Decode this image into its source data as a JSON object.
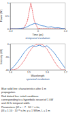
{
  "chart_data": [
    {
      "type": "line",
      "title": "temporal evolution",
      "x_label": "Time (ps)",
      "y_label": "Power (W)",
      "x": [
        -0.4,
        -0.35,
        -0.3,
        -0.25,
        -0.2,
        -0.15,
        -0.1,
        -0.05,
        0,
        0.05,
        0.1,
        0.15,
        0.2,
        0.25,
        0.3,
        0.35,
        0.4
      ],
      "series": [
        {
          "color": "#e3262d",
          "line_style": "dotted",
          "values": [
            0,
            0,
            0,
            0,
            0.02,
            0.3,
            1,
            0.3,
            0.02,
            0,
            0,
            0,
            0,
            0,
            0,
            0,
            0
          ]
        },
        {
          "color": "#2f78cf",
          "line_style": "solid",
          "values": [
            0,
            0,
            0,
            0.01,
            0.03,
            0.08,
            0.15,
            0.2,
            0.18,
            0.12,
            0.1,
            0.06,
            0.08,
            0.03,
            0.04,
            0.01,
            0
          ]
        }
      ],
      "xlim": [
        -0.4,
        0.4
      ],
      "xticks": [
        -0.4,
        0,
        0.4
      ],
      "ylim": [
        0,
        1
      ],
      "yticks": [
        0,
        0.5,
        1
      ]
    },
    {
      "type": "line",
      "title": "spectral evolution",
      "x_label": "Wavelength",
      "y_label": "Intensity (dB)",
      "x": [
        1.4,
        1.42,
        1.44,
        1.46,
        1.48,
        1.5,
        1.52,
        1.54,
        1.56,
        1.58,
        1.6,
        1.62,
        1.64,
        1.66,
        1.68,
        1.7
      ],
      "series": [
        {
          "color": "#e3262d",
          "line_style": "dotted",
          "values": [
            -40,
            -40,
            -38,
            -32,
            -24,
            -14,
            -6,
            -1,
            0,
            -2,
            -8,
            -17,
            -27,
            -35,
            -40,
            -40
          ]
        },
        {
          "color": "#2f78cf",
          "line_style": "solid",
          "values": [
            -40,
            -35,
            -28,
            -20,
            -12,
            -6,
            -3,
            -4,
            -2,
            -5,
            -3,
            -8,
            -14,
            -22,
            -30,
            -38
          ]
        }
      ],
      "xlim": [
        1.4,
        1.7
      ],
      "xticks": [
        1.4,
        1.5,
        1.6,
        1.7
      ],
      "ylim": [
        -40,
        0
      ],
      "yticks": [
        -40,
        -20,
        0
      ]
    }
  ],
  "caption": [
    "Blue solid line: characteristics after 1 m",
    "propagation.",
    "Red dotted line: initial conditions",
    "corresponding to a hyperbolic secant of 1 kW",
    "and 20 fs temporal width.",
    "Parameters: β2 = − 7 · 10⁻²⁸ s²/m,",
    "β3 = 1.10 · 10⁻⁴⁰ s³/m, γ = 1 W/km, L = 1 m"
  ]
}
